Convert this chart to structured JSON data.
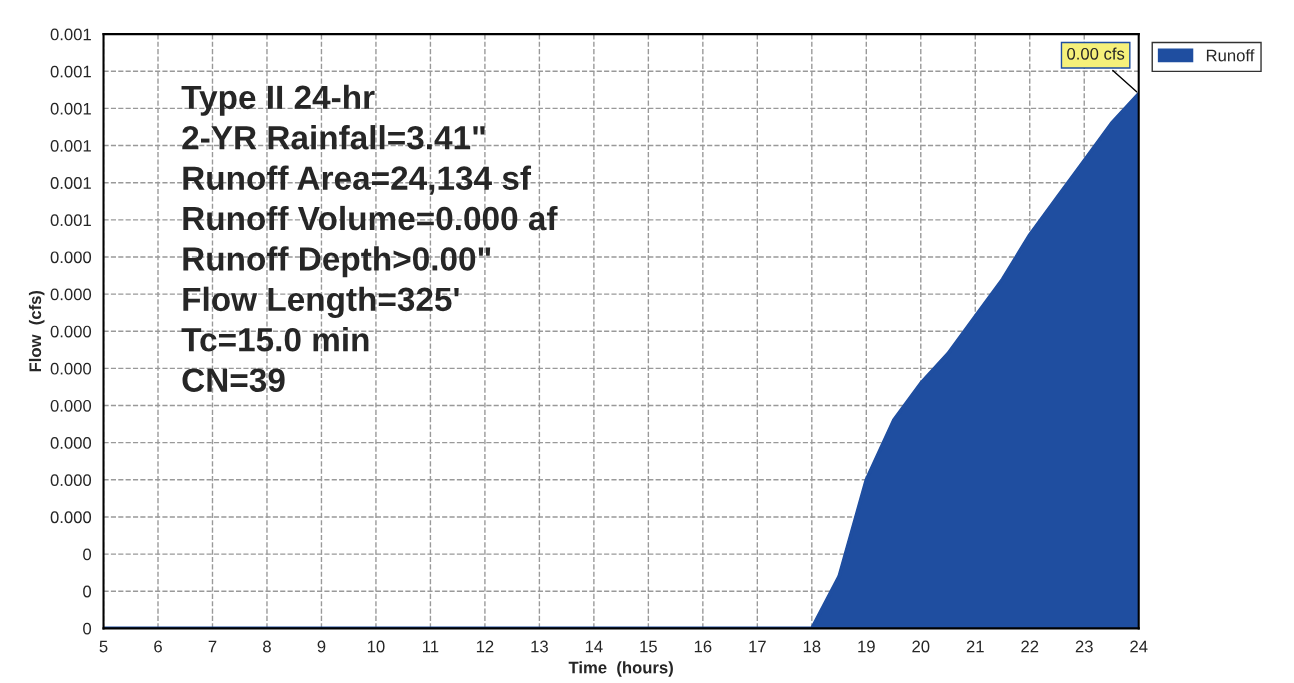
{
  "chart_data": {
    "type": "area",
    "xlabel": "Time  (hours)",
    "ylabel": "Flow  (cfs)",
    "x": [
      5,
      18,
      18.5,
      19,
      19.5,
      20,
      20.5,
      21,
      21.5,
      22,
      22.5,
      23,
      23.5,
      24
    ],
    "series": [
      {
        "name": "Runoff",
        "color": "#1f4ea0",
        "values": [
          0,
          0,
          7e-05,
          0.0002,
          0.00028,
          0.00033,
          0.00037,
          0.00042,
          0.00047,
          0.00053,
          0.00058,
          0.00063,
          0.00068,
          0.00072
        ]
      }
    ],
    "xlim": [
      5,
      24
    ],
    "xticks": [
      5,
      6,
      7,
      8,
      9,
      10,
      11,
      12,
      13,
      14,
      15,
      16,
      17,
      18,
      19,
      20,
      21,
      22,
      23,
      24
    ],
    "ylim": [
      0,
      0.0008
    ],
    "yticks": [
      {
        "value": 0,
        "label": "0"
      },
      {
        "value": 5e-05,
        "label": "0"
      },
      {
        "value": 0.0001,
        "label": "0"
      },
      {
        "value": 0.00015,
        "label": "0.000"
      },
      {
        "value": 0.0002,
        "label": "0.000"
      },
      {
        "value": 0.00025,
        "label": "0.000"
      },
      {
        "value": 0.0003,
        "label": "0.000"
      },
      {
        "value": 0.00035,
        "label": "0.000"
      },
      {
        "value": 0.0004,
        "label": "0.000"
      },
      {
        "value": 0.00045,
        "label": "0.000"
      },
      {
        "value": 0.0005,
        "label": "0.000"
      },
      {
        "value": 0.00055,
        "label": "0.001"
      },
      {
        "value": 0.0006,
        "label": "0.001"
      },
      {
        "value": 0.00065,
        "label": "0.001"
      },
      {
        "value": 0.0007,
        "label": "0.001"
      },
      {
        "value": 0.00075,
        "label": "0.001"
      },
      {
        "value": 0.0008,
        "label": "0.001"
      }
    ],
    "annotations": [
      {
        "text": "0.00 cfs",
        "x": 24,
        "y": 0.00072
      },
      "Type II 24-hr",
      "2-YR Rainfall=3.41\"",
      "Runoff Area=24,134 sf",
      "Runoff Volume=0.000 af",
      "Runoff Depth>0.00\"",
      "Flow Length=325'",
      "Tc=15.0 min",
      "CN=39"
    ],
    "grid": true,
    "line_style": "dashed",
    "legend": "top right"
  }
}
